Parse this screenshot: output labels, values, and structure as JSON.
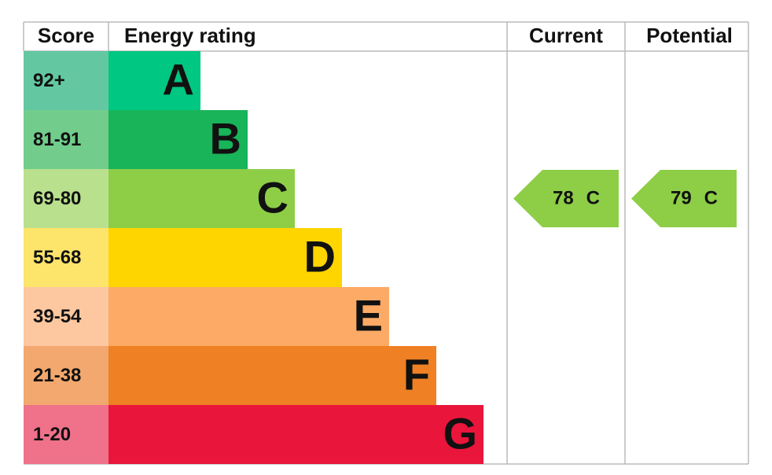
{
  "header": {
    "score": "Score",
    "rating": "Energy rating",
    "current": "Current",
    "potential": "Potential"
  },
  "bands": [
    {
      "letter": "A",
      "range": "92+",
      "color": "#00c781",
      "light": "#63c8a2"
    },
    {
      "letter": "B",
      "range": "81-91",
      "color": "#19b459",
      "light": "#72cc8c"
    },
    {
      "letter": "C",
      "range": "69-80",
      "color": "#8dce46",
      "light": "#b9e08d"
    },
    {
      "letter": "D",
      "range": "55-68",
      "color": "#ffd500",
      "light": "#fde46b"
    },
    {
      "letter": "E",
      "range": "39-54",
      "color": "#fcaa65",
      "light": "#fdc7a0"
    },
    {
      "letter": "F",
      "range": "21-38",
      "color": "#ef8023",
      "light": "#f2a86e"
    },
    {
      "letter": "G",
      "range": "1-20",
      "color": "#e9153b",
      "light": "#f0718a"
    }
  ],
  "current": {
    "score": 78,
    "band": "C"
  },
  "potential": {
    "score": 79,
    "band": "C"
  }
}
